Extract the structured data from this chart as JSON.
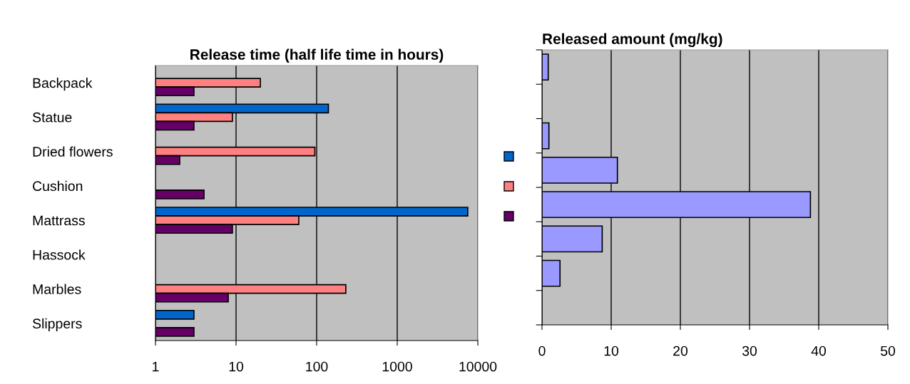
{
  "chart_data": [
    {
      "type": "bar",
      "orientation": "horizontal",
      "title": "Release time (half life time in hours)",
      "log": "x",
      "categories": [
        "Backpack",
        "Statue",
        "Dried flowers",
        "Cushion",
        "Mattrass",
        "Hassock",
        "Marbles",
        "Slippers"
      ],
      "series": [
        {
          "color": "#0066cc",
          "values": [
            null,
            140,
            null,
            null,
            7500,
            null,
            null,
            3
          ]
        },
        {
          "color": "#ff8080",
          "values": [
            20,
            9,
            95,
            null,
            60,
            null,
            230,
            null
          ]
        },
        {
          "color": "#660066",
          "values": [
            3,
            3,
            2,
            4,
            9,
            null,
            8,
            3
          ]
        }
      ],
      "xlim": [
        1,
        10000
      ],
      "xticks": [
        1,
        10,
        100,
        1000,
        10000
      ],
      "grid": "x"
    },
    {
      "type": "bar",
      "orientation": "horizontal",
      "title": "Released amount (mg/kg)",
      "categories": [
        null,
        null,
        null,
        null,
        null,
        null,
        null,
        null
      ],
      "series": [
        {
          "color": "#9999ff",
          "values": [
            0.9,
            null,
            1,
            10.9,
            38.8,
            8.7,
            2.6,
            null
          ]
        }
      ],
      "xlim": [
        0,
        50
      ],
      "xticks": [
        0,
        10,
        20,
        30,
        40,
        50
      ],
      "grid": "x"
    }
  ]
}
